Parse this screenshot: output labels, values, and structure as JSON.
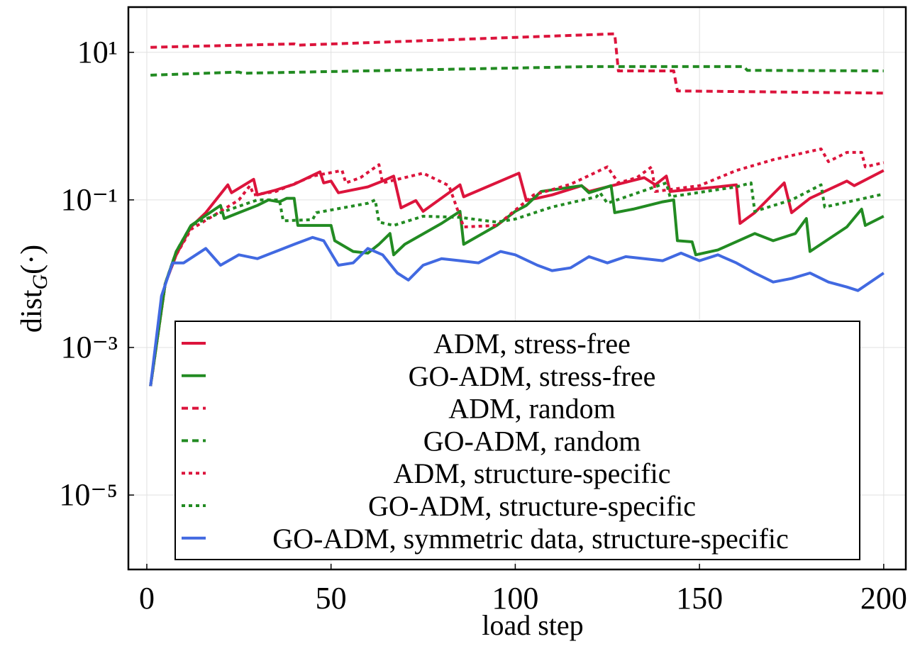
{
  "chart_data": {
    "type": "line",
    "xlabel": "load step",
    "ylabel": [
      "dist",
      "G",
      "(·)"
    ],
    "log_y": true,
    "grid": true,
    "legend": "bottom",
    "xlim": [
      -5,
      206
    ],
    "xticks": [
      0,
      50,
      100,
      150,
      200
    ],
    "ylim": [
      9.8e-07,
      41
    ],
    "yticks": [
      {
        "value": 1e-05,
        "label": "10⁻⁵"
      },
      {
        "value": 0.001,
        "label": "10⁻³"
      },
      {
        "value": 0.1,
        "label": "10⁻¹"
      },
      {
        "value": 10,
        "label": "10¹"
      }
    ],
    "series": [
      {
        "name": "ADM, stress-free",
        "color": "#dc143c",
        "dash": "solid",
        "x": [
          1,
          5,
          8,
          12,
          16,
          22,
          23,
          29,
          30,
          35,
          40,
          47,
          48,
          50,
          52,
          60,
          64,
          67,
          69,
          73,
          75,
          85,
          86,
          101,
          103,
          110,
          118,
          120,
          135,
          138,
          141,
          142,
          155,
          160,
          161,
          165,
          173,
          175,
          180,
          190,
          192,
          200
        ],
        "values": [
          0.0003,
          0.0073,
          0.018,
          0.043,
          0.067,
          0.16,
          0.125,
          0.19,
          0.117,
          0.136,
          0.163,
          0.24,
          0.17,
          0.18,
          0.125,
          0.15,
          0.18,
          0.21,
          0.078,
          0.098,
          0.07,
          0.16,
          0.11,
          0.23,
          0.098,
          0.117,
          0.156,
          0.13,
          0.2,
          0.16,
          0.21,
          0.13,
          0.15,
          0.16,
          0.048,
          0.067,
          0.17,
          0.067,
          0.105,
          0.18,
          0.156,
          0.25
        ]
      },
      {
        "name": "GO-ADM, stress-free",
        "color": "#228b22",
        "dash": "solid",
        "x": [
          1,
          5,
          8,
          12,
          20,
          21,
          25,
          30,
          33,
          36,
          38,
          40,
          41,
          50,
          51,
          56,
          60,
          63,
          66,
          67,
          70,
          80,
          85,
          86,
          95,
          100,
          103,
          107,
          118,
          120,
          126,
          127,
          132,
          140,
          143,
          144,
          148,
          149,
          155,
          165,
          170,
          176,
          179,
          180,
          190,
          194,
          195,
          200
        ],
        "values": [
          0.0003,
          0.0073,
          0.02,
          0.045,
          0.084,
          0.056,
          0.067,
          0.084,
          0.1,
          0.094,
          0.105,
          0.105,
          0.045,
          0.045,
          0.028,
          0.02,
          0.019,
          0.025,
          0.035,
          0.018,
          0.025,
          0.048,
          0.07,
          0.025,
          0.045,
          0.07,
          0.084,
          0.13,
          0.156,
          0.125,
          0.156,
          0.067,
          0.075,
          0.094,
          0.1,
          0.028,
          0.027,
          0.018,
          0.021,
          0.035,
          0.028,
          0.035,
          0.056,
          0.02,
          0.043,
          0.075,
          0.045,
          0.06
        ]
      },
      {
        "name": "ADM, random",
        "color": "#dc143c",
        "dash": "dashed",
        "x": [
          1,
          40,
          41,
          127,
          128,
          143,
          144,
          200
        ],
        "values": [
          11.7,
          13,
          12.5,
          17.8,
          5.6,
          5.6,
          3,
          2.8
        ]
      },
      {
        "name": "GO-ADM, random",
        "color": "#228b22",
        "dash": "dashed",
        "x": [
          1,
          25,
          26,
          120,
          162,
          163,
          200
        ],
        "values": [
          4.9,
          5.4,
          5.2,
          6.4,
          6.4,
          5.7,
          5.6
        ]
      },
      {
        "name": "ADM, structure-specific",
        "color": "#dc143c",
        "dash": "dotted",
        "x": [
          1,
          5,
          8,
          12,
          20,
          25,
          28,
          29,
          35,
          45,
          53,
          54,
          58,
          63,
          64,
          75,
          82,
          86,
          95,
          105,
          115,
          125,
          128,
          133,
          137,
          138,
          150,
          160,
          170,
          183,
          185,
          190,
          194,
          195,
          200
        ],
        "values": [
          0.0003,
          0.0073,
          0.018,
          0.04,
          0.07,
          0.1,
          0.156,
          0.117,
          0.13,
          0.21,
          0.25,
          0.17,
          0.2,
          0.3,
          0.17,
          0.23,
          0.156,
          0.043,
          0.045,
          0.117,
          0.163,
          0.28,
          0.17,
          0.2,
          0.28,
          0.13,
          0.156,
          0.25,
          0.35,
          0.49,
          0.33,
          0.44,
          0.44,
          0.28,
          0.32
        ]
      },
      {
        "name": "GO-ADM, structure-specific",
        "color": "#228b22",
        "dash": "dotted",
        "x": [
          1,
          5,
          8,
          12,
          20,
          30,
          36,
          37,
          45,
          46,
          50,
          60,
          62,
          63,
          67,
          75,
          85,
          95,
          100,
          110,
          122,
          123,
          125,
          141,
          142,
          160,
          164,
          165,
          175,
          183,
          184,
          200
        ],
        "values": [
          0.0003,
          0.0073,
          0.02,
          0.045,
          0.067,
          0.1,
          0.1,
          0.052,
          0.054,
          0.067,
          0.073,
          0.09,
          0.1,
          0.05,
          0.045,
          0.06,
          0.058,
          0.05,
          0.055,
          0.08,
          0.11,
          0.125,
          0.09,
          0.17,
          0.11,
          0.15,
          0.17,
          0.07,
          0.1,
          0.16,
          0.08,
          0.12
        ]
      },
      {
        "name": "GO-ADM, symmetric data, structure-specific",
        "color": "#4169e1",
        "dash": "solid",
        "x": [
          1,
          4,
          7,
          10,
          16,
          20,
          25,
          30,
          35,
          40,
          45,
          48,
          52,
          56,
          60,
          64,
          68,
          71,
          75,
          80,
          85,
          90,
          96,
          100,
          106,
          110,
          115,
          120,
          125,
          130,
          140,
          145,
          150,
          155,
          160,
          165,
          170,
          175,
          180,
          185,
          190,
          193,
          200
        ],
        "values": [
          0.0003,
          0.005,
          0.014,
          0.014,
          0.022,
          0.013,
          0.018,
          0.016,
          0.02,
          0.025,
          0.031,
          0.028,
          0.013,
          0.014,
          0.022,
          0.018,
          0.0102,
          0.0082,
          0.013,
          0.016,
          0.015,
          0.014,
          0.02,
          0.018,
          0.013,
          0.011,
          0.012,
          0.017,
          0.014,
          0.017,
          0.015,
          0.019,
          0.015,
          0.018,
          0.014,
          0.0102,
          0.0077,
          0.0086,
          0.0102,
          0.0077,
          0.0066,
          0.0059,
          0.0102
        ]
      }
    ]
  }
}
